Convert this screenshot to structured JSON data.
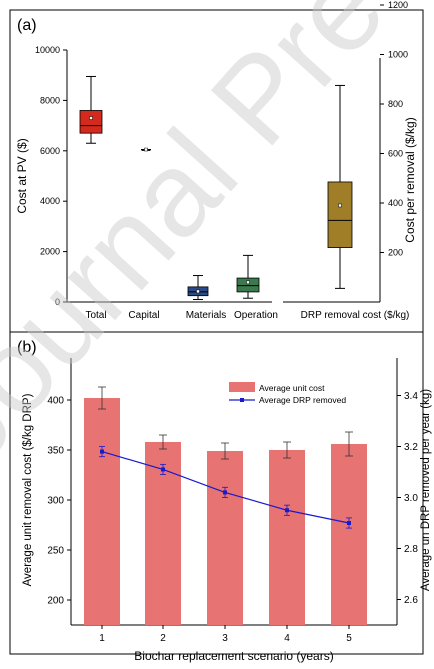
{
  "panel_a": {
    "label": "(a)",
    "ylabel_left": "Cost  at PV ($)",
    "ylabel_right": "Cost  per removal ($/kg)",
    "chart_data": {
      "type": "box",
      "title": "",
      "ylim_left": [
        0,
        10000
      ],
      "yticks_left": [
        "0",
        "2000",
        "4000",
        "6000",
        "8000",
        "10000"
      ],
      "ylim_right": [
        0,
        1200
      ],
      "yticks_right": [
        "200",
        "400",
        "600",
        "800",
        "1000",
        "1200"
      ],
      "categories": [
        "Total",
        "Capital",
        "Materials",
        "Operation",
        "DRP removal cost ($/kg)"
      ],
      "boxes": [
        {
          "label": "Total",
          "axis": "left",
          "min": 6300,
          "q1": 6700,
          "median": 7000,
          "q3": 7600,
          "max": 8950,
          "mean": 7300,
          "color": "#d42a1e"
        },
        {
          "label": "Capital",
          "axis": "left",
          "min": 6050,
          "q1": 6050,
          "median": 6050,
          "q3": 6050,
          "max": 6050,
          "mean": 6050,
          "color": "#888888"
        },
        {
          "label": "Materials",
          "axis": "left",
          "min": 100,
          "q1": 250,
          "median": 400,
          "q3": 600,
          "max": 1050,
          "mean": 420,
          "color": "#2a4a8a"
        },
        {
          "label": "Operation",
          "axis": "left",
          "min": 150,
          "q1": 400,
          "median": 650,
          "q3": 950,
          "max": 1850,
          "mean": 780,
          "color": "#3a7a4e"
        },
        {
          "label": "DRP removal cost ($/kg)",
          "axis": "right",
          "min": 55,
          "q1": 220,
          "median": 330,
          "q3": 485,
          "max": 875,
          "mean": 390,
          "color": "#a07e28"
        }
      ]
    }
  },
  "panel_b": {
    "label": "(b)",
    "ylabel_left": "Average unit removal cost  ($/kg DRP)",
    "ylabel_right": "Average un  DRP removed per year (kg)",
    "xlabel": "Biochar replacement scenario (years)",
    "chart_data": {
      "type": "bar+line",
      "categories": [
        "1",
        "2",
        "3",
        "4",
        "5"
      ],
      "ylim_left": [
        175,
        425
      ],
      "yticks_left": [
        "200",
        "250",
        "300",
        "350",
        "400"
      ],
      "ylim_right": [
        2.5,
        3.5
      ],
      "yticks_right": [
        "2.6",
        "2.8",
        "3.0",
        "3.2",
        "3.4"
      ],
      "series": [
        {
          "name": "Average unit cost",
          "type": "bar",
          "axis": "left",
          "values": [
            402,
            358,
            349,
            350,
            356
          ],
          "errors": [
            11,
            7,
            8,
            8,
            12
          ],
          "color": "#e87373"
        },
        {
          "name": "Average DRP removed",
          "type": "line",
          "axis": "right",
          "values": [
            3.18,
            3.11,
            3.02,
            2.95,
            2.9
          ],
          "errors": [
            0.02,
            0.02,
            0.02,
            0.02,
            0.02
          ],
          "color": "#1a1acc"
        }
      ],
      "legend_position": "top-right"
    }
  },
  "watermark": {
    "text": "Journal Pre-proof"
  }
}
